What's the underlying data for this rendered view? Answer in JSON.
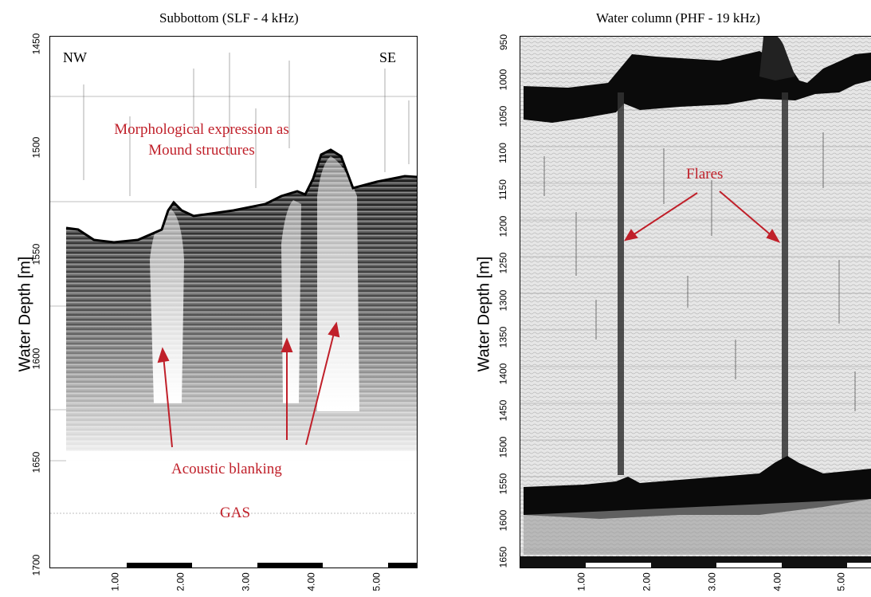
{
  "left_panel": {
    "title": "Subbottom (SLF - 4 kHz)",
    "ylabel": "Water Depth [m]",
    "y_ticks": [
      "1450",
      "1500",
      "1550",
      "1600",
      "1650",
      "1700"
    ],
    "x_ticks": [
      "1.00",
      "2.00",
      "3.00",
      "4.00",
      "5.00"
    ],
    "direction_left": "NW",
    "direction_right": "SE",
    "annotation_mounds_line1": "Morphological expression as",
    "annotation_mounds_line2": "Mound structures",
    "annotation_blanking": "Acoustic blanking",
    "annotation_gas": "GAS"
  },
  "right_panel": {
    "title": "Water column (PHF - 19 kHz)",
    "ylabel": "Water Depth [m]",
    "y_ticks": [
      "950",
      "1000",
      "1050",
      "1100",
      "1150",
      "1200",
      "1250",
      "1300",
      "1350",
      "1400",
      "1450",
      "1500",
      "1550",
      "1600",
      "1650"
    ],
    "x_ticks": [
      "1.00",
      "2.00",
      "3.00",
      "4.00",
      "5.00"
    ],
    "annotation_flares": "Flares"
  },
  "colors": {
    "annotation": "#c0202a",
    "echo": "#000000",
    "background": "#ffffff"
  }
}
